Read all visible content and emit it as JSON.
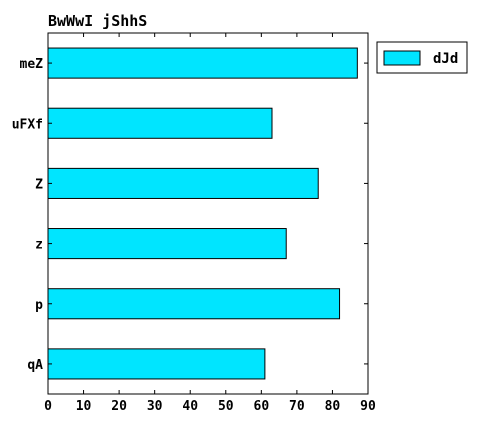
{
  "chart_data": {
    "type": "bar",
    "orientation": "horizontal",
    "title": "BwWwI  jShhS",
    "xlabel": "",
    "ylabel": "",
    "categories": [
      "meZ",
      "uFXf",
      "Z",
      "z",
      "p",
      "qA"
    ],
    "series": [
      {
        "name": "dJd",
        "values": [
          87,
          63,
          76,
          67,
          82,
          61
        ],
        "color": "#00e5ff"
      }
    ],
    "xlim": [
      0,
      90
    ],
    "xticks": [
      0,
      10,
      20,
      30,
      40,
      50,
      60,
      70,
      80,
      90
    ],
    "grid": false,
    "legend_position": "outside-top-right"
  }
}
